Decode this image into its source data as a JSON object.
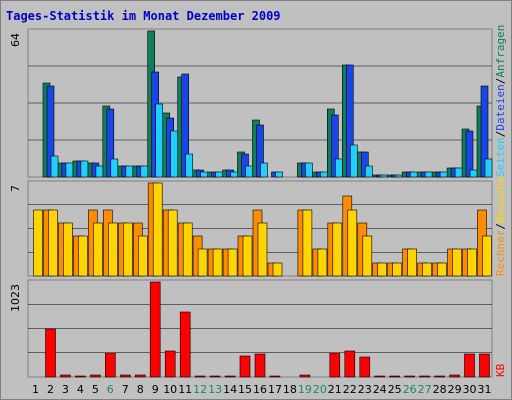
{
  "chart_data": {
    "type": "bar",
    "title": "Tages-Statistik im Monat Dezember 2009",
    "colors": {
      "title": "#0000cc",
      "anfragen": "#0e7f5b",
      "dateien": "#1a46e6",
      "seiten": "#1fd0ff",
      "rechner": "#ff8c00",
      "besuche": "#ffd400",
      "kb": "#ff0000",
      "weekend": "#1e8a5a",
      "panel_bg": "#c0c0c0",
      "grid": "#000000"
    },
    "days": [
      "1",
      "2",
      "3",
      "4",
      "5",
      "6",
      "7",
      "8",
      "9",
      "10",
      "11",
      "12",
      "13",
      "14",
      "15",
      "16",
      "17",
      "18",
      "19",
      "20",
      "21",
      "22",
      "23",
      "24",
      "25",
      "26",
      "27",
      "28",
      "29",
      "30",
      "31"
    ],
    "weekend_days": [
      "6",
      "12",
      "13",
      "19",
      "20",
      "26",
      "27"
    ],
    "panel1": {
      "ymax_label": "64",
      "ymax": 64,
      "legend": {
        "anfragen": "Anfragen",
        "sep1": "/",
        "dateien": "Dateien",
        "sep2": "/",
        "seiten": "Seiten"
      },
      "series": [
        {
          "key": "anfragen",
          "values": [
            0,
            41,
            6,
            7,
            6,
            31,
            5,
            5,
            64,
            28,
            44,
            3,
            2,
            3,
            11,
            25,
            0,
            0,
            6,
            2,
            30,
            49,
            11,
            1,
            1,
            2,
            2,
            2,
            4,
            21,
            31
          ]
        },
        {
          "key": "dateien",
          "values": [
            0,
            40,
            6,
            7,
            6,
            30,
            5,
            5,
            46,
            26,
            45,
            3,
            2,
            3,
            10,
            23,
            2,
            0,
            6,
            2,
            27,
            49,
            11,
            1,
            1,
            2,
            2,
            2,
            4,
            20,
            40
          ]
        },
        {
          "key": "seiten",
          "values": [
            0,
            9,
            6,
            7,
            5,
            8,
            5,
            5,
            32,
            20,
            10,
            2,
            2,
            2,
            5,
            6,
            2,
            0,
            6,
            2,
            8,
            14,
            5,
            1,
            1,
            2,
            2,
            2,
            4,
            3,
            8
          ]
        }
      ]
    },
    "panel2": {
      "ymax_label": "7",
      "ymax": 7,
      "legend": {
        "rechner": "Rechner",
        "sep": "/",
        "besuche": "Besuche"
      },
      "series": [
        {
          "key": "rechner",
          "values": [
            0,
            5,
            4,
            3,
            5,
            5,
            4,
            4,
            7,
            5,
            4,
            3,
            2,
            2,
            3,
            5,
            1,
            0,
            5,
            2,
            4,
            6,
            4,
            1,
            1,
            2,
            1,
            1,
            2,
            2,
            5
          ]
        },
        {
          "key": "besuche",
          "values": [
            5,
            5,
            4,
            3,
            4,
            4,
            4,
            3,
            7,
            5,
            4,
            2,
            2,
            2,
            3,
            4,
            1,
            0,
            5,
            2,
            4,
            5,
            3,
            1,
            1,
            2,
            1,
            1,
            2,
            2,
            3
          ]
        }
      ]
    },
    "panel3": {
      "ymax_label": "1023",
      "ymax": 1023,
      "legend": {
        "kb": "KB"
      },
      "series": [
        {
          "key": "kb",
          "values": [
            0,
            520,
            20,
            15,
            20,
            260,
            20,
            20,
            1023,
            280,
            700,
            15,
            15,
            15,
            230,
            250,
            15,
            0,
            20,
            0,
            260,
            280,
            210,
            10,
            10,
            10,
            10,
            10,
            20,
            250,
            250
          ]
        }
      ]
    }
  }
}
